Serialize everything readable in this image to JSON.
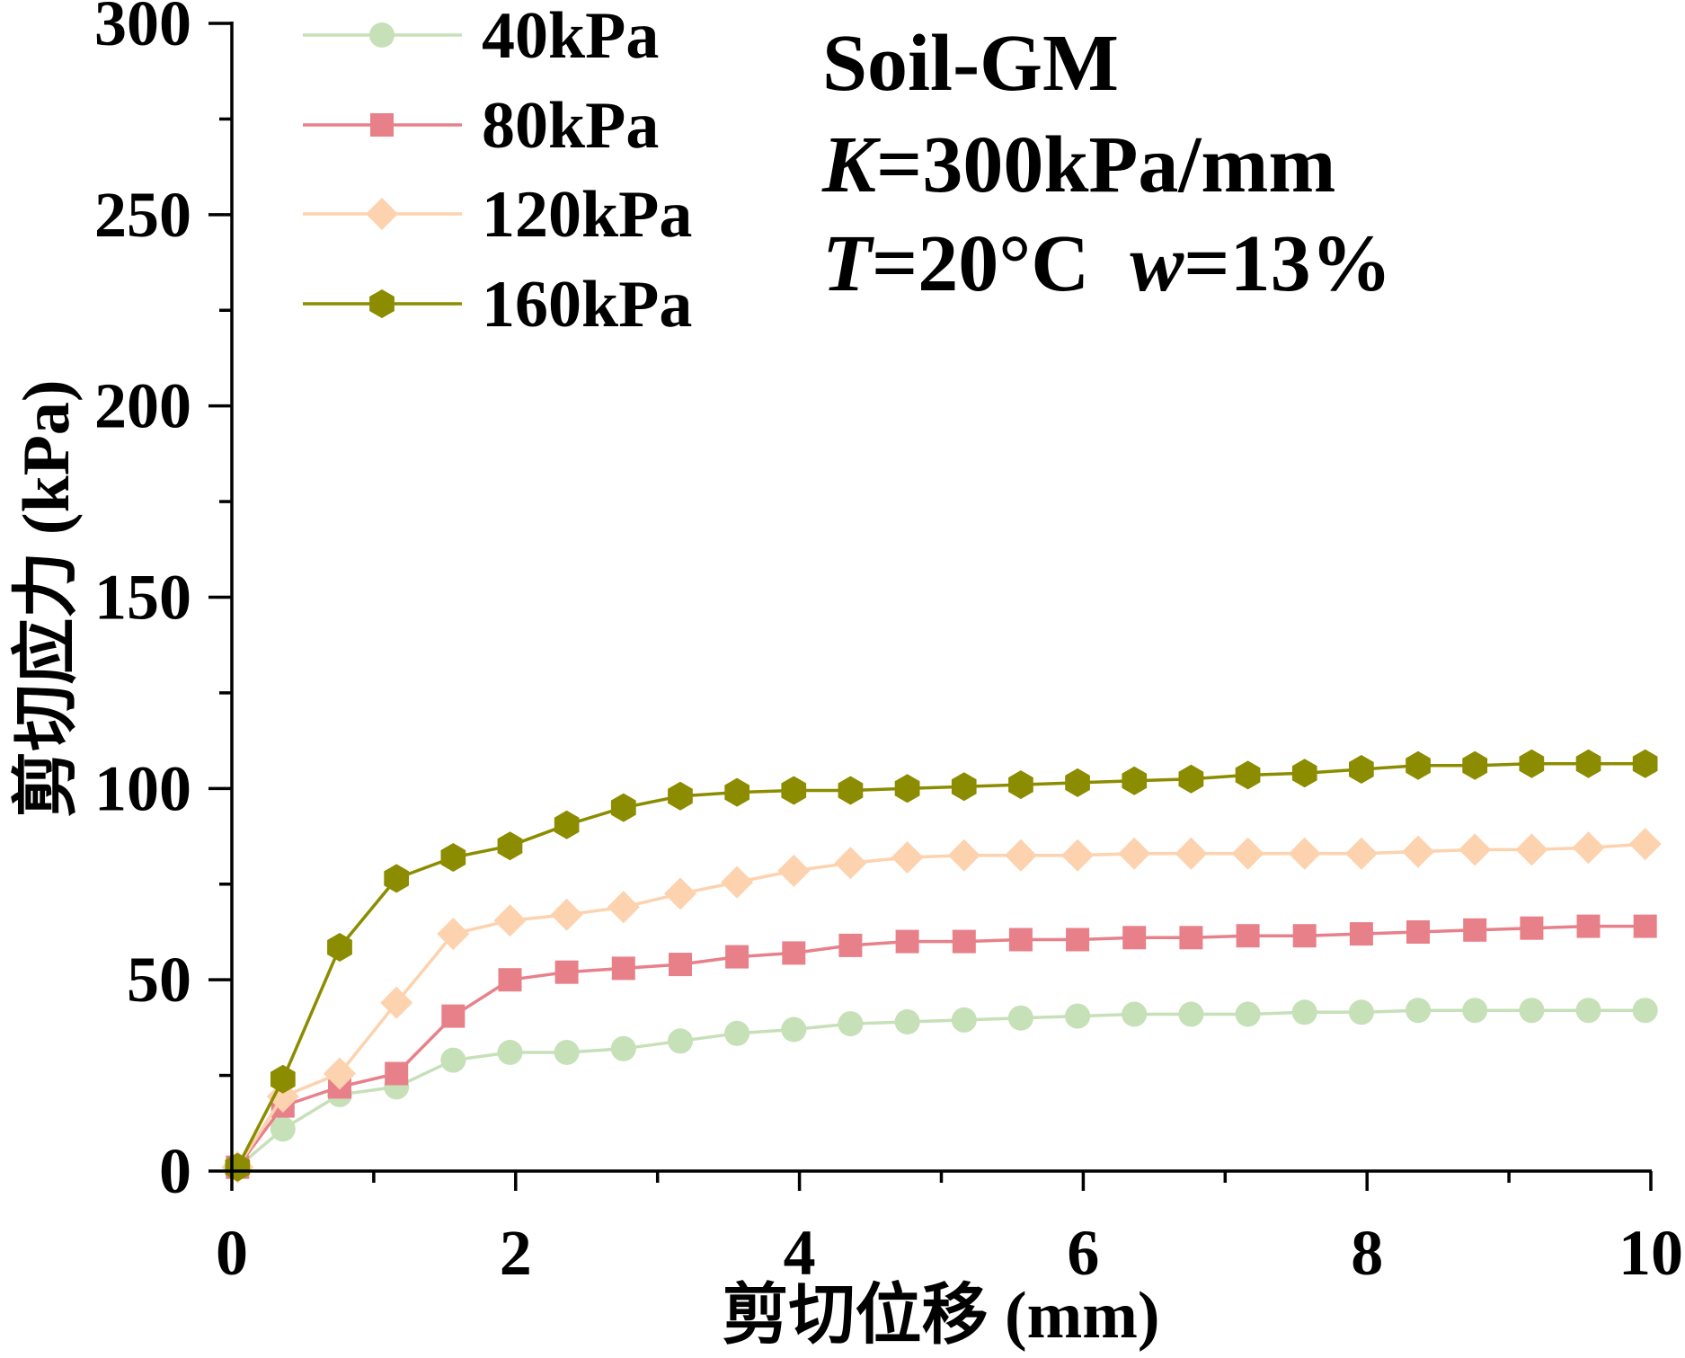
{
  "chart_data": {
    "type": "line",
    "title": "",
    "xlabel": "剪切位移 (mm)",
    "ylabel": "剪切应力 (kPa)",
    "xlim": [
      0,
      10
    ],
    "ylim": [
      0,
      300
    ],
    "xticks": [
      0,
      2,
      4,
      6,
      8,
      10
    ],
    "xticks_minor": [
      1,
      3,
      5,
      7,
      9
    ],
    "yticks": [
      0,
      50,
      100,
      150,
      200,
      250,
      300
    ],
    "yticks_minor": [
      25,
      75,
      125,
      175,
      225,
      275
    ],
    "grid": false,
    "legend_position": "top-left",
    "x": [
      0.04,
      0.36,
      0.76,
      1.16,
      1.56,
      1.96,
      2.36,
      2.76,
      3.16,
      3.56,
      3.96,
      4.36,
      4.76,
      5.16,
      5.56,
      5.96,
      6.36,
      6.76,
      7.16,
      7.56,
      7.96,
      8.36,
      8.76,
      9.16,
      9.56,
      9.96
    ],
    "series": [
      {
        "name": "40kPa",
        "color": "#c6e0b8",
        "marker": "circle",
        "values": [
          1,
          11,
          20,
          22,
          29,
          31,
          31,
          32,
          34,
          36,
          37,
          38.5,
          39,
          39.5,
          40,
          40.5,
          41,
          41,
          41,
          41.5,
          41.5,
          42,
          42,
          42,
          42,
          42
        ]
      },
      {
        "name": "80kPa",
        "color": "#e8808a",
        "marker": "square",
        "values": [
          1,
          17,
          22,
          25.5,
          40.5,
          50,
          52,
          53,
          54,
          56,
          57,
          59,
          60,
          60,
          60.5,
          60.5,
          61,
          61,
          61.5,
          61.5,
          62,
          62.5,
          63,
          63.5,
          64,
          64
        ]
      },
      {
        "name": "120kPa",
        "color": "#fdd2ae",
        "marker": "diamond",
        "values": [
          1,
          19.5,
          25.5,
          44,
          62,
          65.5,
          67,
          69,
          72.5,
          75.5,
          78.5,
          80.5,
          82,
          82.5,
          82.5,
          82.5,
          83,
          83,
          83,
          83,
          83,
          83.5,
          84,
          84,
          84.5,
          85.5
        ]
      },
      {
        "name": "160kPa",
        "color": "#8c8c00",
        "marker": "hexagon",
        "values": [
          1,
          24,
          58.5,
          76.5,
          82,
          85,
          90.5,
          95,
          98,
          99,
          99.5,
          99.5,
          100,
          100.5,
          101,
          101.5,
          102,
          102.5,
          103.5,
          104,
          105,
          106,
          106,
          106.5,
          106.5,
          106.5
        ]
      }
    ]
  },
  "annotations": {
    "material": "Soil-GM",
    "k_symbol": "K",
    "k_value": "=300kPa/mm",
    "t_symbol": "T",
    "t_value": "=20°C  ",
    "w_symbol": "w",
    "w_value": "=13%"
  }
}
